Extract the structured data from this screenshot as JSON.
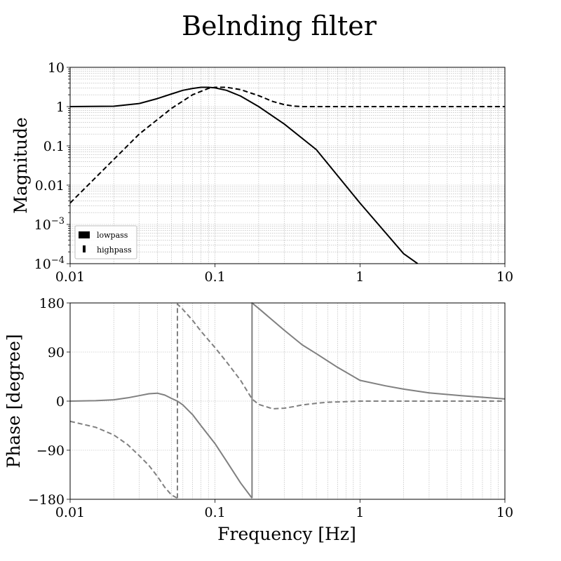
{
  "title": "Belnding filter",
  "chart_data": [
    {
      "type": "line",
      "panel": "magnitude",
      "ylabel": "Magnitude",
      "xlabel": "",
      "xscale": "log",
      "yscale": "log",
      "xlim": [
        0.01,
        10
      ],
      "ylim": [
        0.0001,
        10
      ],
      "grid": true,
      "x_ticks": [
        "0.01",
        "0.1",
        "1",
        "10"
      ],
      "y_ticks": [
        {
          "base": "10",
          "exp": "−4"
        },
        {
          "base": "10",
          "exp": "−3"
        },
        {
          "base": "0.01",
          "exp": ""
        },
        {
          "base": "0.1",
          "exp": ""
        },
        {
          "base": "1",
          "exp": ""
        },
        {
          "base": "10",
          "exp": ""
        }
      ],
      "legend": {
        "placement": "lower-left",
        "entries": [
          "lowpass",
          "highpass"
        ]
      },
      "series": [
        {
          "name": "lowpass",
          "style": "solid",
          "color": "#000000",
          "x": [
            0.01,
            0.02,
            0.03,
            0.04,
            0.05,
            0.06,
            0.07,
            0.08,
            0.09,
            0.1,
            0.12,
            0.15,
            0.2,
            0.3,
            0.5,
            1,
            2,
            2.5
          ],
          "y": [
            1,
            1.02,
            1.2,
            1.6,
            2.1,
            2.6,
            2.9,
            3.1,
            3.1,
            3.0,
            2.6,
            1.85,
            1.0,
            0.36,
            0.08,
            0.0035,
            0.00018,
            0.0001
          ]
        },
        {
          "name": "highpass",
          "style": "dashed",
          "color": "#000000",
          "x": [
            0.01,
            0.02,
            0.03,
            0.05,
            0.07,
            0.09,
            0.1,
            0.12,
            0.15,
            0.2,
            0.25,
            0.3,
            0.35,
            0.4,
            0.5,
            1,
            10
          ],
          "y": [
            0.0035,
            0.045,
            0.2,
            0.9,
            2.0,
            2.9,
            3.1,
            3.1,
            2.7,
            1.9,
            1.35,
            1.12,
            1.03,
            1.0,
            1.0,
            1.0,
            1.0
          ]
        }
      ]
    },
    {
      "type": "line",
      "panel": "phase",
      "ylabel": "Phase [degree]",
      "xlabel": "Frequency [Hz]",
      "xscale": "log",
      "xlim": [
        0.01,
        10
      ],
      "ylim": [
        -180,
        180
      ],
      "grid": true,
      "x_ticks": [
        "0.01",
        "0.1",
        "1",
        "10"
      ],
      "y_ticks": [
        -180,
        -90,
        0,
        90,
        180
      ],
      "y_tick_labels": [
        "−180",
        "−90",
        "0",
        "90",
        "180"
      ],
      "series": [
        {
          "name": "lowpass",
          "style": "solid",
          "color": "#808080",
          "segments": [
            {
              "x": [
                0.01,
                0.015,
                0.02,
                0.025,
                0.03,
                0.035,
                0.04,
                0.045,
                0.05,
                0.055,
                0.06,
                0.07,
                0.08,
                0.1,
                0.12,
                0.15,
                0.18
              ],
              "y": [
                0,
                0.8,
                2.5,
                6,
                10,
                13.5,
                14.5,
                11,
                5,
                0,
                -7,
                -25,
                -45,
                -78,
                -110,
                -150,
                -178
              ]
            },
            {
              "x": [
                0.18,
                0.18,
                0.2,
                0.25,
                0.3,
                0.4,
                0.5,
                0.7,
                1,
                1.5,
                2,
                3,
                5,
                10
              ],
              "y": [
                -178,
                180,
                170,
                148,
                130,
                103,
                87,
                62,
                38,
                28,
                22,
                15,
                10,
                4
              ]
            }
          ]
        },
        {
          "name": "highpass",
          "style": "dashed",
          "color": "#808080",
          "segments": [
            {
              "x": [
                0.01,
                0.015,
                0.02,
                0.025,
                0.03,
                0.035,
                0.04,
                0.045,
                0.05,
                0.055
              ],
              "y": [
                -37,
                -48,
                -62,
                -80,
                -100,
                -118,
                -138,
                -158,
                -172,
                -178
              ]
            },
            {
              "x": [
                0.055,
                0.055,
                0.06,
                0.07,
                0.08,
                0.1,
                0.12,
                0.15,
                0.18,
                0.2,
                0.25,
                0.3,
                0.35,
                0.4,
                0.5,
                0.6,
                0.8,
                1,
                2,
                10
              ],
              "y": [
                -178,
                178,
                168,
                148,
                128,
                98,
                72,
                38,
                4,
                -6,
                -14,
                -13,
                -10,
                -7,
                -4,
                -2,
                -1,
                0,
                0,
                0
              ]
            }
          ]
        }
      ]
    }
  ]
}
